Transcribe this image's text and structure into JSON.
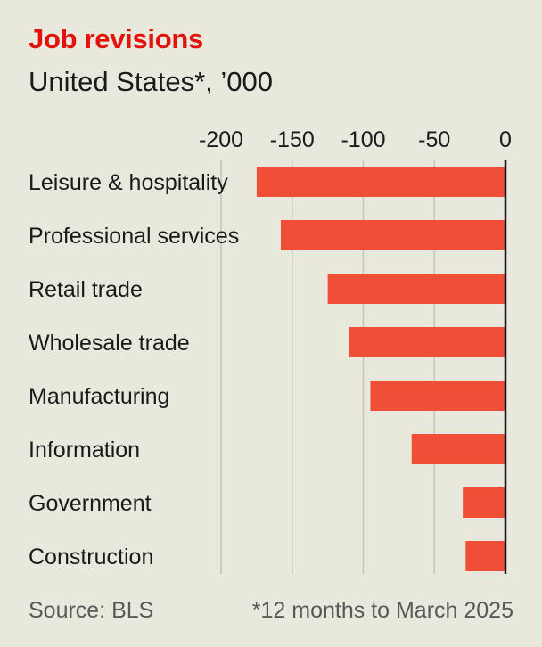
{
  "chart_data": {
    "type": "bar",
    "orientation": "horizontal",
    "title": "Job revisions",
    "subtitle": "United States*, ’000",
    "categories": [
      "Leisure & hospitality",
      "Professional services",
      "Retail trade",
      "Wholesale trade",
      "Manufacturing",
      "Information",
      "Government",
      "Construction"
    ],
    "values": [
      -175,
      -158,
      -125,
      -110,
      -95,
      -66,
      -30,
      -28
    ],
    "xlim": [
      -200,
      0
    ],
    "ticks": [
      "-200",
      "-150",
      "-100",
      "-50",
      "0"
    ],
    "tick_values": [
      -200,
      -150,
      -100,
      -50,
      0
    ],
    "grid": true,
    "bar_color": "#f04e37"
  },
  "footer": {
    "source": "Source: BLS",
    "note": "*12 months to March 2025"
  }
}
